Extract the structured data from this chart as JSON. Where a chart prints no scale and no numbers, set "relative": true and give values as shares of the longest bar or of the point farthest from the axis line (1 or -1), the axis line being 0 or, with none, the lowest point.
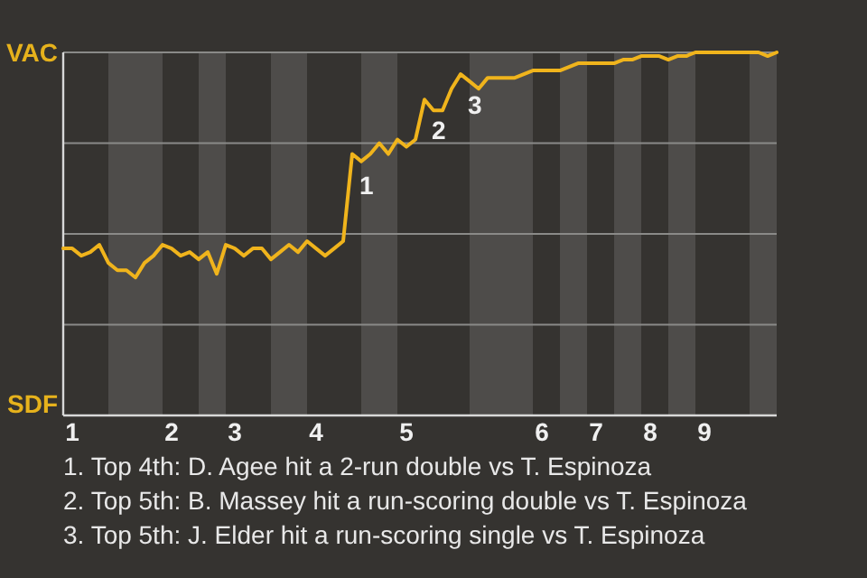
{
  "chart_data": {
    "type": "line",
    "relative": true,
    "categories": [
      null,
      "1",
      null,
      null,
      null,
      null,
      null,
      null,
      null,
      null,
      null,
      null,
      "2",
      null,
      null,
      null,
      null,
      null,
      null,
      "3",
      null,
      null,
      null,
      null,
      null,
      null,
      null,
      null,
      "4",
      null,
      null,
      null,
      null,
      null,
      null,
      null,
      null,
      null,
      "5",
      null,
      null,
      null,
      null,
      null,
      null,
      null,
      null,
      null,
      null,
      null,
      null,
      null,
      null,
      "6",
      null,
      null,
      null,
      null,
      null,
      "7",
      null,
      null,
      null,
      null,
      null,
      "8",
      null,
      null,
      null,
      null,
      null,
      "9",
      null,
      null,
      null,
      null,
      null,
      null,
      null,
      null
    ],
    "grid": "y",
    "marker": "none",
    "line_style": "solid",
    "series": [
      {
        "color": "#f0b41c",
        "values": [
          0.46,
          0.46,
          0.44,
          0.45,
          0.47,
          0.42,
          0.4,
          0.4,
          0.38,
          0.42,
          0.44,
          0.47,
          0.46,
          0.44,
          0.45,
          0.43,
          0.45,
          0.39,
          0.47,
          0.46,
          0.44,
          0.46,
          0.46,
          0.43,
          0.45,
          0.47,
          0.45,
          0.48,
          0.46,
          0.44,
          0.46,
          0.48,
          0.72,
          0.7,
          0.72,
          0.75,
          0.72,
          0.76,
          0.74,
          0.76,
          0.87,
          0.84,
          0.84,
          0.9,
          0.94,
          0.92,
          0.9,
          0.93,
          0.93,
          0.93,
          0.93,
          0.94,
          0.95,
          0.95,
          0.95,
          0.95,
          0.96,
          0.97,
          0.97,
          0.97,
          0.97,
          0.97,
          0.98,
          0.98,
          0.99,
          0.99,
          0.99,
          0.98,
          0.99,
          0.99,
          1.0,
          1.0,
          1.0,
          1.0,
          1.0,
          1.0,
          1.0,
          1.0,
          0.99,
          1.0
        ]
      }
    ],
    "annotations": [
      "VAC",
      "SDF",
      {
        "text": "1",
        "y": 0.72
      },
      {
        "text": "2",
        "y": 0.87
      },
      {
        "text": "3",
        "y": 0.94
      },
      "1. Top 4th: D. Agee hit a 2-run double vs T. Espinoza",
      "2. Top 5th: B. Massey hit a run-scoring double vs T. Espinoza",
      "3. Top 5th: J. Elder hit a run-scoring single vs T. Espinoza"
    ]
  }
}
